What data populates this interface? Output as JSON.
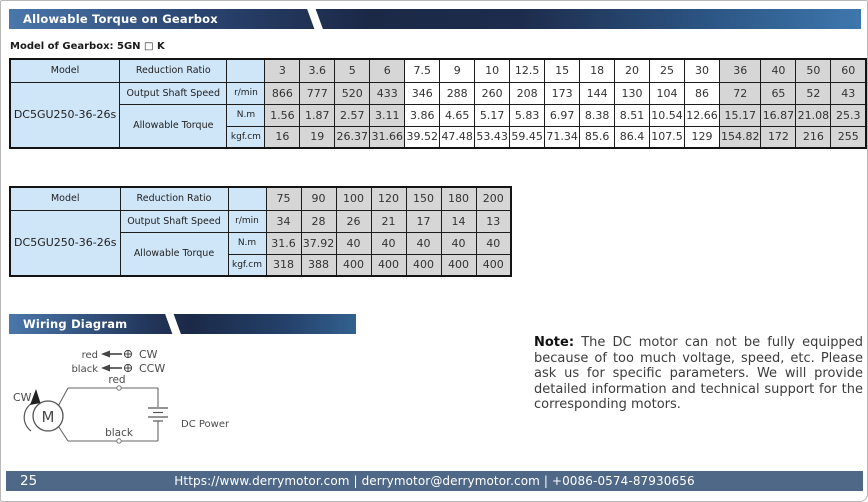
{
  "banners": {
    "torque_title": "Allowable Torque on Gearbox",
    "wiring_title": "Wiring Diagram"
  },
  "gearbox_model_label": "Model of Gearbox: 5GN □ K",
  "colors": {
    "banner_blue": "#4a77ab",
    "banner_navy": "#1b2947",
    "header_cell_blue": "#cfe5f8",
    "shaded_gray": "#d6d6d6",
    "footer_slate": "#4f6888"
  },
  "tables": [
    {
      "labels": {
        "model": "Model",
        "reduction_ratio": "Reduction Ratio",
        "output_shaft_speed": "Output Shaft Speed",
        "allowable_torque": "Allowable Torque",
        "unit_speed": "r/min",
        "unit_nm": "N.m",
        "unit_kgfcm": "kgf.cm"
      },
      "model_value": "DC5GU250-36-26s",
      "ratios": [
        "3",
        "3.6",
        "5",
        "6",
        "7.5",
        "9",
        "10",
        "12.5",
        "15",
        "18",
        "20",
        "25",
        "30",
        "36",
        "40",
        "50",
        "60"
      ],
      "speeds": [
        "866",
        "777",
        "520",
        "433",
        "346",
        "288",
        "260",
        "208",
        "173",
        "144",
        "130",
        "104",
        "86",
        "72",
        "65",
        "52",
        "43"
      ],
      "torque_nm": [
        "1.56",
        "1.87",
        "2.57",
        "3.11",
        "3.86",
        "4.65",
        "5.17",
        "5.83",
        "6.97",
        "8.38",
        "8.51",
        "10.54",
        "12.66",
        "15.17",
        "16.87",
        "21.08",
        "25.3"
      ],
      "torque_kgfcm": [
        "16",
        "19",
        "26.37",
        "31.66",
        "39.52",
        "47.48",
        "53.43",
        "59.45",
        "71.34",
        "85.6",
        "86.4",
        "107.5",
        "129",
        "154.82",
        "172",
        "216",
        "255"
      ],
      "shaded": [
        0,
        1,
        2,
        3,
        13,
        14,
        15,
        16
      ]
    },
    {
      "labels": {
        "model": "Model",
        "reduction_ratio": "Reduction Ratio",
        "output_shaft_speed": "Output Shaft Speed",
        "allowable_torque": "Allowable Torque",
        "unit_speed": "r/min",
        "unit_nm": "N.m",
        "unit_kgfcm": "kgf.cm"
      },
      "model_value": "DC5GU250-36-26s",
      "ratios": [
        "75",
        "90",
        "100",
        "120",
        "150",
        "180",
        "200"
      ],
      "speeds": [
        "34",
        "28",
        "26",
        "21",
        "17",
        "14",
        "13"
      ],
      "torque_nm": [
        "31.6",
        "37.92",
        "40",
        "40",
        "40",
        "40",
        "40"
      ],
      "torque_kgfcm": [
        "318",
        "388",
        "400",
        "400",
        "400",
        "400",
        "400"
      ],
      "shaded": [
        0,
        1,
        2,
        3,
        4,
        5,
        6
      ]
    }
  ],
  "wiring": {
    "legend_red": "red",
    "legend_black": "black",
    "legend_cw": "CW",
    "legend_ccw": "CCW",
    "wire_red_label": "red",
    "wire_black_label": "black",
    "motor_letter": "M",
    "motor_direction": "CW",
    "dc_power_label": "DC Power"
  },
  "note": {
    "label": "Note:",
    "text": "The DC motor can not be fully equipped because of too much voltage, speed, etc. Please ask us for specific parameters. We will provide detailed information and technical support for the corresponding motors."
  },
  "footer": {
    "page_number": "25",
    "text": "Https://www.derrymotor.com | derrymotor@derrymotor.com | +0086-0574-87930656"
  }
}
